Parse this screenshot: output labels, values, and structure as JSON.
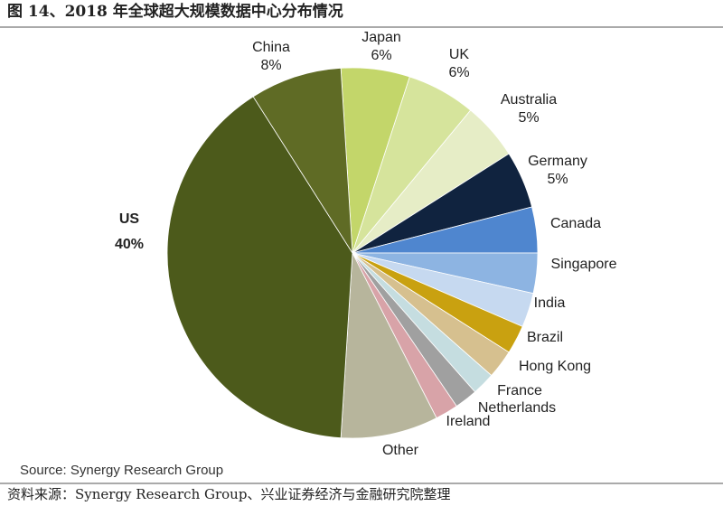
{
  "chart_data": {
    "type": "pie",
    "header": "图 14、2018 年全球超大规模数据中心分布情况",
    "source": "Source: Synergy Research Group",
    "note": "资料来源：Synergy Research Group、兴业证券经济与金融研究院整理",
    "categories": [
      "Japan",
      "UK",
      "Australia",
      "Germany",
      "Canada",
      "Singapore",
      "India",
      "Brazil",
      "Hong Kong",
      "France",
      "Netherlands",
      "Ireland",
      "Other",
      "US",
      "China"
    ],
    "values": [
      6,
      6,
      5,
      5,
      4,
      3.5,
      3,
      2.5,
      2.5,
      2,
      2,
      2,
      8.5,
      40,
      8
    ],
    "value_labels": [
      "6%",
      "6%",
      "5%",
      "5%",
      null,
      null,
      null,
      null,
      null,
      null,
      null,
      null,
      null,
      "40%",
      "8%"
    ],
    "colors": [
      "#c3d66a",
      "#d6e49c",
      "#e6edc6",
      "#10233f",
      "#4f86cf",
      "#8db4e2",
      "#c6d9f0",
      "#c9a110",
      "#d6c08f",
      "#c5dde0",
      "#a0a0a0",
      "#d8a3a8",
      "#b7b59c",
      "#4c5a1b",
      "#5f6b25"
    ]
  }
}
